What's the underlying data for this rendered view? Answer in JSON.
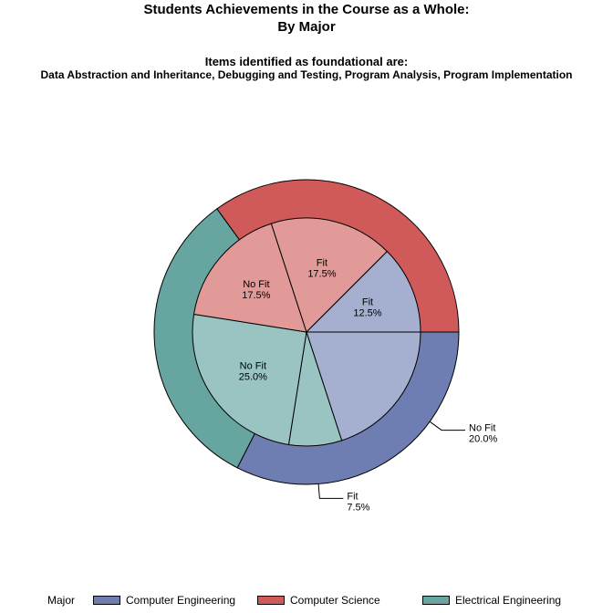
{
  "titles": {
    "title": "Students Achievements in the Course as a Whole:",
    "subtitle": "By Major",
    "note_heading": "Items identified as foundational are:",
    "note_items": "Data Abstraction and Inheritance, Debugging and Testing, Program Analysis, Program Implementation"
  },
  "legend": {
    "title": "Major",
    "items": [
      {
        "label": "Computer Engineering",
        "color": "#6f7eb2"
      },
      {
        "label": "Computer Science",
        "color": "#d05a5a"
      },
      {
        "label": "Electrical Engineering",
        "color": "#66a5a0"
      }
    ]
  },
  "chart_data": {
    "type": "pie",
    "variant": "nested (outer ring = Major, inner = Fit / No Fit)",
    "outer": [
      {
        "label": "Computer Engineering",
        "value": 32.5,
        "color": "#6f7eb2"
      },
      {
        "label": "Electrical Engineering",
        "value": 32.5,
        "color": "#66a5a0"
      },
      {
        "label": "Computer Science",
        "value": 35.0,
        "color": "#d05a5a"
      }
    ],
    "inner": [
      {
        "major": "Computer Engineering",
        "label": "No Fit",
        "value": 20.0,
        "display": "20.0%",
        "color": "#a5b0d1",
        "label_position": "outside"
      },
      {
        "major": "Electrical Engineering",
        "label": "Fit",
        "value": 7.5,
        "display": "7.5%",
        "color": "#9ac4c1",
        "label_position": "outside"
      },
      {
        "major": "Electrical Engineering",
        "label": "No Fit",
        "value": 25.0,
        "display": "25.0%",
        "color": "#9ac4c1",
        "label_position": "inside"
      },
      {
        "major": "Computer Science",
        "label": "No Fit",
        "value": 17.5,
        "display": "17.5%",
        "color": "#e29a99",
        "label_position": "inside"
      },
      {
        "major": "Computer Science",
        "label": "Fit",
        "value": 17.5,
        "display": "17.5%",
        "color": "#e29a99",
        "label_position": "inside"
      },
      {
        "major": "Computer Engineering",
        "label": "Fit",
        "value": 12.5,
        "display": "12.5%",
        "color": "#a5b0d1",
        "label_position": "inside"
      }
    ]
  }
}
